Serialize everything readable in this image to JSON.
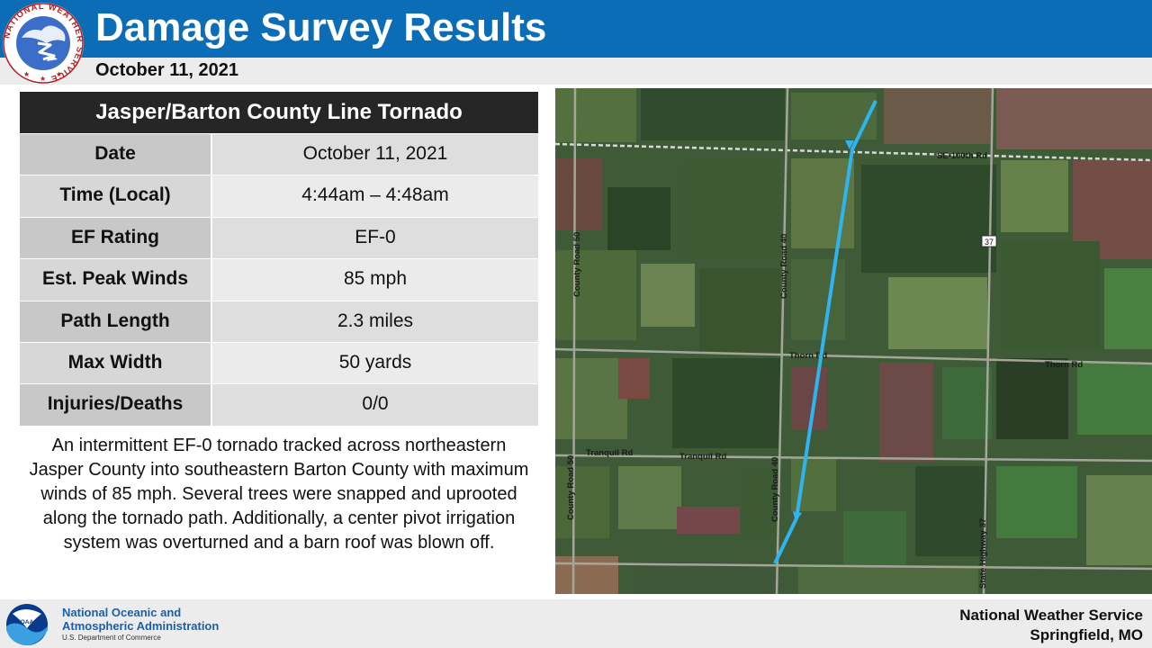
{
  "header": {
    "title": "Damage Survey Results",
    "date": "October 11, 2021",
    "logo_ring_text": "NATIONAL WEATHER SERVICE",
    "accent_color": "#0b6db5"
  },
  "table": {
    "title": "Jasper/Barton County Line Tornado",
    "rows": [
      {
        "label": "Date",
        "value": "October 11, 2021"
      },
      {
        "label": "Time (Local)",
        "value": "4:44am – 4:48am"
      },
      {
        "label": "EF Rating",
        "value": "EF-0"
      },
      {
        "label": "Est. Peak Winds",
        "value": "85 mph"
      },
      {
        "label": "Path Length",
        "value": "2.3 miles"
      },
      {
        "label": "Max Width",
        "value": "50 yards"
      },
      {
        "label": "Injuries/Deaths",
        "value": "0/0"
      }
    ]
  },
  "description": "An intermittent EF-0 tornado tracked across northeastern Jasper County into southeastern Barton County with maximum winds of 85 mph. Several trees were snapped and uprooted along the tornado path. Additionally,  a center pivot irrigation system was overturned and a barn roof was blown off.",
  "map": {
    "labels": {
      "se100": "SE-100th Rd",
      "thorn_left": "Thorn Rd",
      "thorn_right": "Thorn Rd",
      "tranquil_left": "Tranquil Rd",
      "tranquil_mid": "Tranquil Rd",
      "cr50_top": "County Road 50",
      "cr50_bottom": "County Road 50",
      "cr40_top": "County Road 40",
      "cr40_bottom": "County Road 40",
      "hwy37": "State Highway 37",
      "shield37": "37"
    },
    "track_color": "#2fb4f0"
  },
  "footer": {
    "noaa_line1": "National Oceanic and",
    "noaa_line2": "Atmospheric Administration",
    "noaa_dept": "U.S. Department of Commerce",
    "noaa_logo_text": "NOAA",
    "nws_line1": "National Weather Service",
    "nws_line2": "Springfield, MO"
  }
}
